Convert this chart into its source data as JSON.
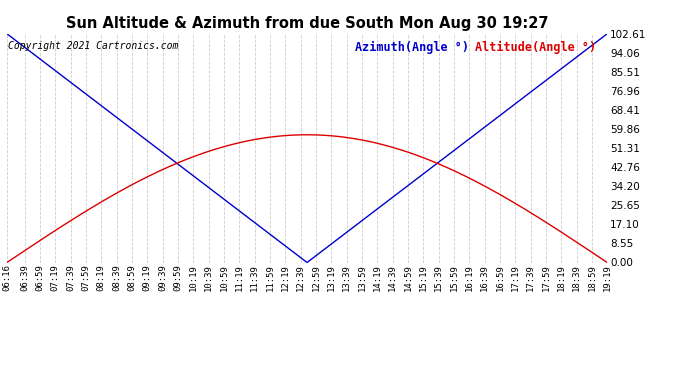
{
  "title": "Sun Altitude & Azimuth from due South Mon Aug 30 19:27",
  "copyright": "Copyright 2021 Cartronics.com",
  "legend_azimuth": "Azimuth(Angle °)",
  "legend_altitude": "Altitude(Angle °)",
  "yticks": [
    0.0,
    8.55,
    17.1,
    25.65,
    34.2,
    42.76,
    51.31,
    59.86,
    68.41,
    76.96,
    85.51,
    94.06,
    102.61
  ],
  "ylim": [
    0.0,
    102.61
  ],
  "max_altitude": 57.3,
  "azimuth_max": 102.61,
  "altitude_color": "#dd0000",
  "azimuth_color": "#0000cc",
  "background_color": "#ffffff",
  "grid_color": "#cccccc",
  "title_color": "#000000",
  "copyright_color": "#000000",
  "legend_azimuth_color": "#0000cc",
  "legend_altitude_color": "#dd0000",
  "xtick_labels": [
    "06:16",
    "06:39",
    "06:59",
    "07:19",
    "07:39",
    "07:59",
    "08:19",
    "08:39",
    "08:59",
    "09:19",
    "09:39",
    "09:59",
    "10:19",
    "10:39",
    "10:59",
    "11:19",
    "11:39",
    "11:59",
    "12:19",
    "12:39",
    "12:59",
    "13:19",
    "13:39",
    "13:59",
    "14:19",
    "14:39",
    "14:59",
    "15:19",
    "15:39",
    "15:59",
    "16:19",
    "16:39",
    "16:59",
    "17:19",
    "17:39",
    "17:59",
    "18:19",
    "18:39",
    "18:59",
    "19:19"
  ]
}
